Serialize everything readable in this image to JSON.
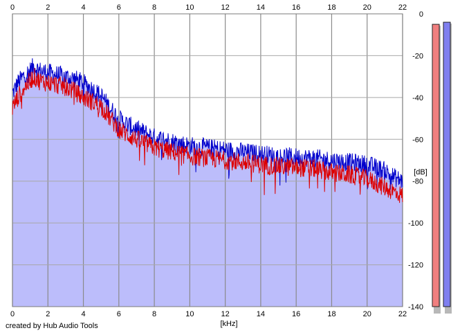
{
  "chart_data": {
    "type": "area",
    "title": "",
    "xlabel": "[kHz]",
    "ylabel": "[dB]",
    "xlim": [
      0,
      22
    ],
    "ylim": [
      -140,
      0
    ],
    "x_ticks": [
      0,
      2,
      4,
      6,
      8,
      10,
      12,
      14,
      16,
      18,
      20,
      22
    ],
    "x_tick_labels": [
      "0",
      "2",
      "4",
      "6",
      "8",
      "10",
      "12",
      "14",
      "16",
      "18",
      "20",
      "22"
    ],
    "y_ticks": [
      0,
      -20,
      -40,
      -60,
      -80,
      -100,
      -120,
      -140
    ],
    "y_tick_labels": [
      "0",
      "-20",
      "-40",
      "-60",
      "-80",
      "-100",
      "-120",
      "-140"
    ],
    "grid": true,
    "x_axis_labels_top_and_bottom": true,
    "series": [
      {
        "color": "#0000cc",
        "x": [
          0,
          0.3,
          0.6,
          0.9,
          1.2,
          1.5,
          2.0,
          2.5,
          3.0,
          3.5,
          4.0,
          4.5,
          5.0,
          5.5,
          6.0,
          6.5,
          7.0,
          7.5,
          8.0,
          9.0,
          10.0,
          11.0,
          12.0,
          13.0,
          14.0,
          15.0,
          16.0,
          17.0,
          18.0,
          19.0,
          20.0,
          21.0,
          21.5,
          22.0
        ],
        "values": [
          -38,
          -33,
          -30,
          -28,
          -25,
          -27,
          -28,
          -29,
          -30,
          -31,
          -33,
          -36,
          -39,
          -45,
          -50,
          -53,
          -55,
          -57,
          -59,
          -61,
          -63,
          -64,
          -65,
          -66,
          -67,
          -68,
          -68.5,
          -69,
          -70,
          -71,
          -72,
          -75,
          -78,
          -80
        ]
      },
      {
        "color": "#dd0000",
        "x": [
          0,
          0.3,
          0.6,
          0.9,
          1.2,
          1.5,
          2.0,
          2.5,
          3.0,
          3.5,
          4.0,
          4.5,
          5.0,
          5.5,
          6.0,
          6.5,
          7.0,
          7.5,
          8.0,
          9.0,
          10.0,
          11.0,
          12.0,
          13.0,
          14.0,
          15.0,
          16.0,
          17.0,
          18.0,
          19.0,
          20.0,
          21.0,
          21.5,
          22.0
        ],
        "values": [
          -45,
          -40,
          -36,
          -33,
          -30,
          -32,
          -33,
          -34,
          -35,
          -37,
          -40,
          -42,
          -44,
          -50,
          -55,
          -58,
          -60,
          -62,
          -64,
          -66,
          -68,
          -69,
          -70,
          -71,
          -72,
          -73,
          -73.5,
          -74,
          -76,
          -77,
          -79,
          -83,
          -85,
          -87
        ]
      }
    ],
    "fill_color": "#bcbdfb",
    "level_meters": [
      {
        "color": "#f07f7f",
        "level_db": -5
      },
      {
        "color": "#7f7fef",
        "level_db": -4
      }
    ]
  },
  "credit_text": "created by Hub Audio Tools"
}
